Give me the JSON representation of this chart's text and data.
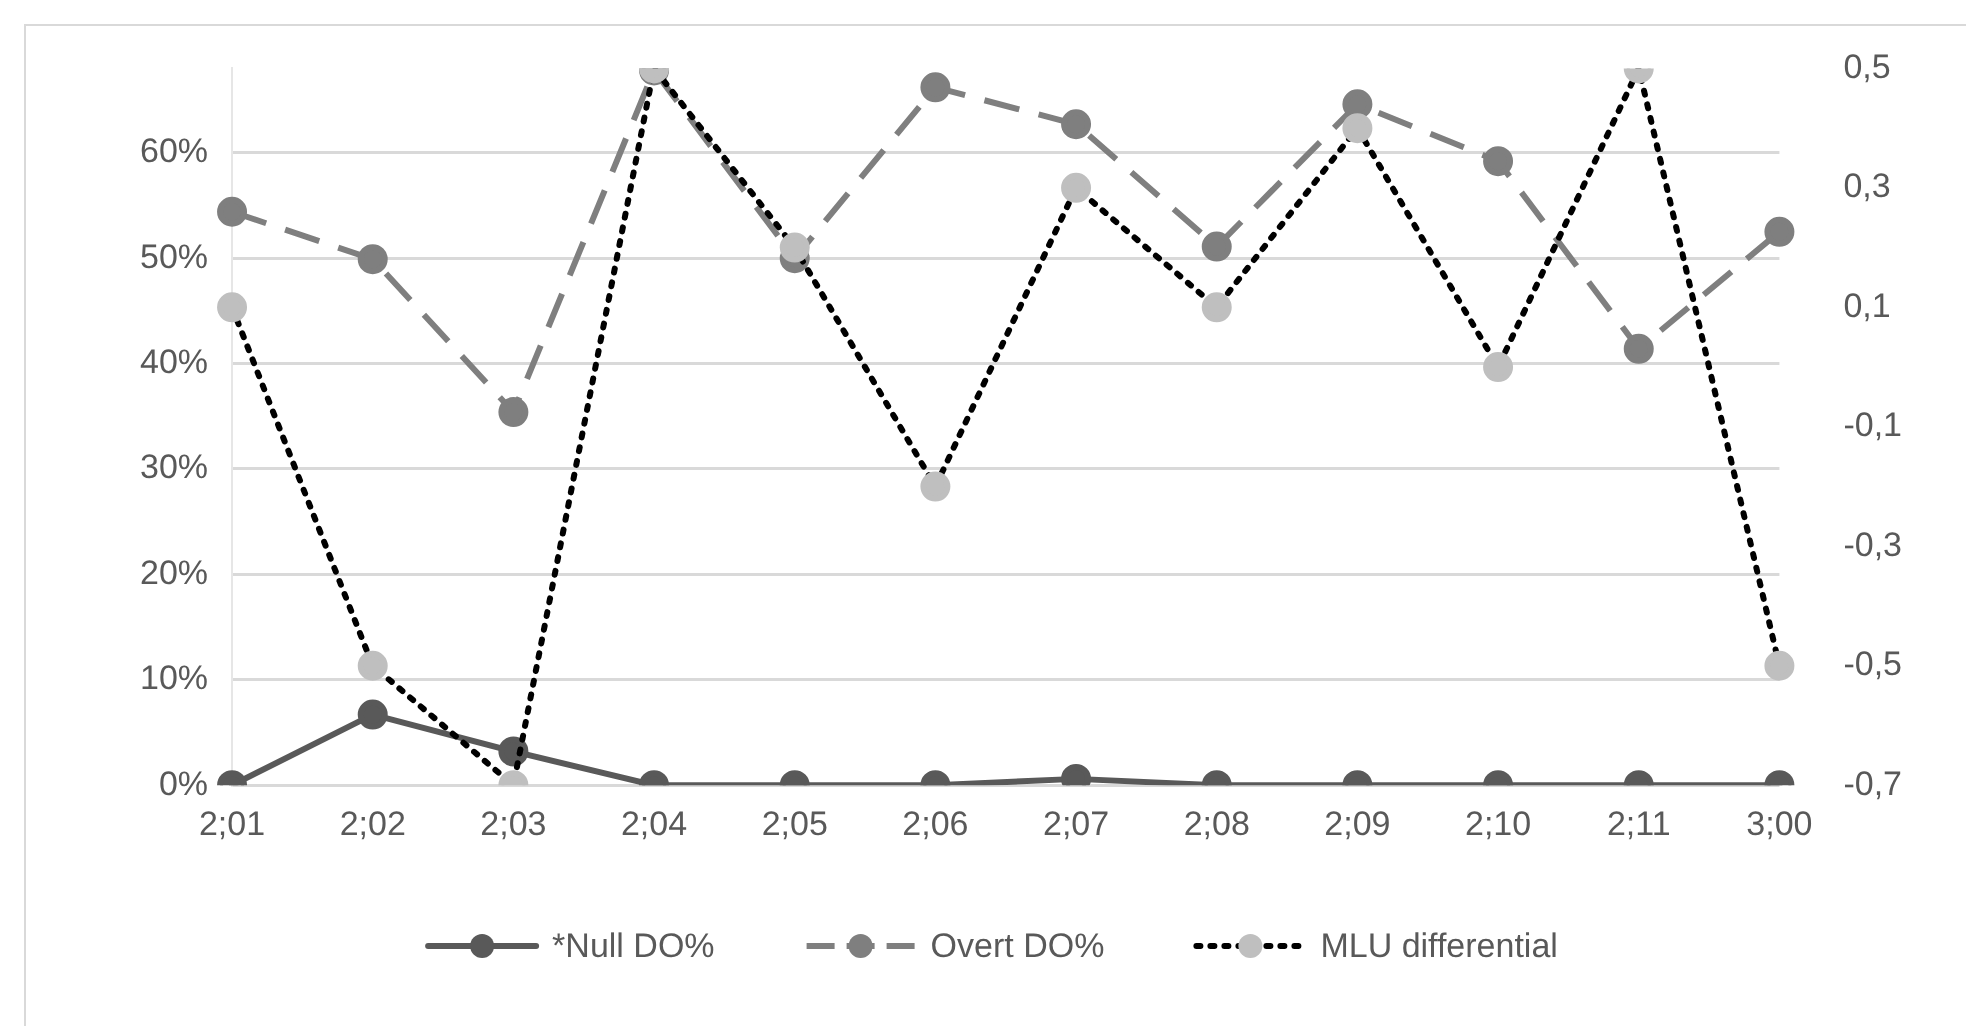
{
  "chart_data": {
    "type": "line",
    "categories": [
      "2;01",
      "2;02",
      "2;03",
      "2;04",
      "2;05",
      "2;06",
      "2;07",
      "2;08",
      "2;09",
      "2;10",
      "2;11",
      "3;00"
    ],
    "series": [
      {
        "name": "*Null DO%",
        "color": "#595959",
        "line_style": "solid",
        "values": [
          0,
          6.7,
          3.2,
          0,
          0,
          0,
          0.6,
          0,
          0,
          0,
          0,
          0
        ]
      },
      {
        "name": "Overt DO%",
        "color": "#7f7f7f",
        "line_style": "dashed",
        "values": [
          54.4,
          49.9,
          35.4,
          67.8,
          50,
          66.2,
          62.7,
          51.1,
          64.6,
          59.2,
          41.4,
          52.5
        ]
      },
      {
        "name": "MLU differential",
        "color": "#000000",
        "colors": [
          "#bfbfbf",
          "#bfbfbf",
          "#bfbfbf",
          "#bfbfbf",
          "#bfbfbf",
          "#bfbfbf",
          "#bfbfbf",
          "#bfbfbf",
          "#bfbfbf",
          "#bfbfbf",
          "#bfbfbf",
          "#bfbfbf"
        ],
        "line_style": "dotted",
        "axis": "y2",
        "values": [
          0.1,
          -0.5,
          -0.7,
          0.5,
          0.2,
          -0.2,
          0.3,
          0.1,
          0.4,
          0,
          0.5,
          -0.5
        ]
      }
    ],
    "ylim": [
      0,
      68
    ],
    "yticks": [
      {
        "value": 0,
        "label": "0%"
      },
      {
        "value": 10,
        "label": "10%"
      },
      {
        "value": 20,
        "label": "20%"
      },
      {
        "value": 30,
        "label": "30%"
      },
      {
        "value": 40,
        "label": "40%"
      },
      {
        "value": 50,
        "label": "50%"
      },
      {
        "value": 60,
        "label": "60%"
      }
    ],
    "y2lim": [
      -0.7,
      0.5
    ],
    "y2ticks": [
      {
        "value": -0.7,
        "label": "-0,7"
      },
      {
        "value": -0.5,
        "label": "-0,5"
      },
      {
        "value": -0.3,
        "label": "-0,3"
      },
      {
        "value": -0.1,
        "label": "-0,1"
      },
      {
        "value": 0.1,
        "label": "0,1"
      },
      {
        "value": 0.3,
        "label": "0,3"
      },
      {
        "value": 0.5,
        "label": "0,5"
      }
    ],
    "grid": "y",
    "legend": "bottom",
    "marker": "circle"
  }
}
